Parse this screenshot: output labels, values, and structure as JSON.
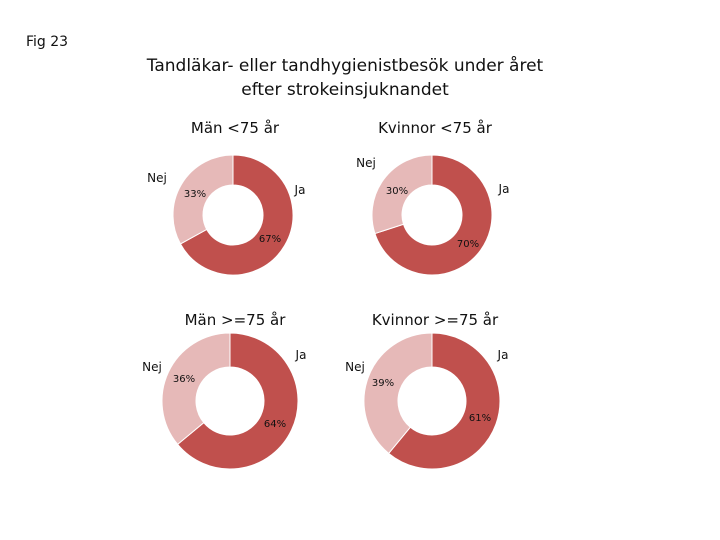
{
  "figure_label": "Fig 23",
  "title_line1": "Tandläkar- eller tandhygienistbesök under året",
  "title_line2": "efter strokeinsjuknandet",
  "colors": {
    "ja": "#c0504d",
    "nej": "#e6b9b8"
  },
  "chart_data": [
    {
      "type": "pie",
      "title": "Män <75 år",
      "categories": [
        "Ja",
        "Nej"
      ],
      "values": [
        67,
        33
      ],
      "value_labels": [
        "67%",
        "33%"
      ]
    },
    {
      "type": "pie",
      "title": "Kvinnor <75 år",
      "categories": [
        "Ja",
        "Nej"
      ],
      "values": [
        70,
        30
      ],
      "value_labels": [
        "70%",
        "30%"
      ]
    },
    {
      "type": "pie",
      "title": "Män >=75 år",
      "categories": [
        "Ja",
        "Nej"
      ],
      "values": [
        64,
        36
      ],
      "value_labels": [
        "64%",
        "36%"
      ]
    },
    {
      "type": "pie",
      "title": "Kvinnor >=75 år",
      "categories": [
        "Ja",
        "Nej"
      ],
      "values": [
        61,
        39
      ],
      "value_labels": [
        "61%",
        "39%"
      ]
    }
  ]
}
